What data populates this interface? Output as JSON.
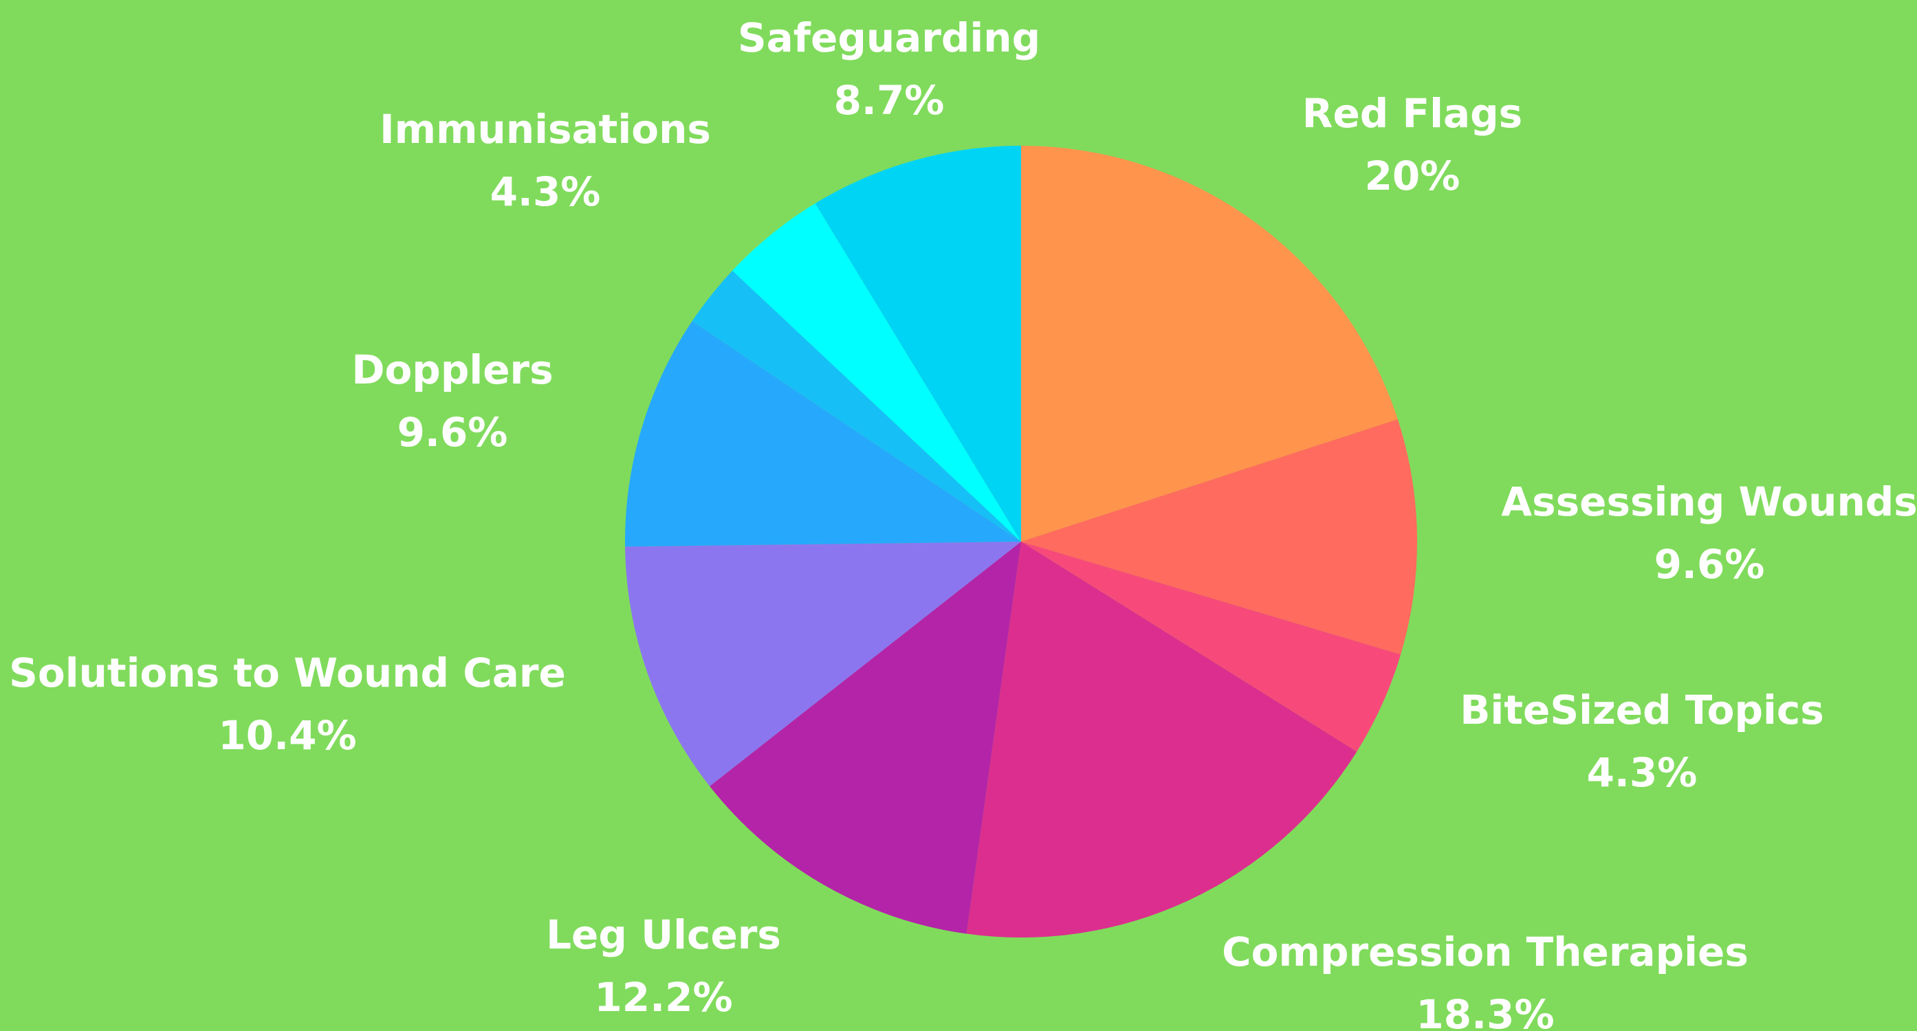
{
  "chart_data": {
    "type": "pie",
    "categories": [
      "Red Flags",
      "Assessing Wounds",
      "BiteSized Topics",
      "Compression Therapies",
      "Leg Ulcers",
      "Solutions to Wound Care",
      "Dopplers",
      null,
      "Immunisations",
      "Safeguarding"
    ],
    "values": [
      20,
      9.6,
      4.3,
      18.3,
      12.2,
      10.4,
      9.6,
      2.6,
      4.3,
      8.7
    ],
    "value_labels": [
      "20%",
      "9.6%",
      "4.3%",
      "18.3%",
      "12.2%",
      "10.4%",
      "9.6%",
      null,
      "4.3%",
      "8.7%"
    ],
    "colors": [
      "#ff944d",
      "#ff6b5e",
      "#f74a7a",
      "#dc2e8e",
      "#b424a8",
      "#8c76f0",
      "#26a9fc",
      "#16c0f7",
      "#00ffff",
      "#00d4f5"
    ]
  }
}
